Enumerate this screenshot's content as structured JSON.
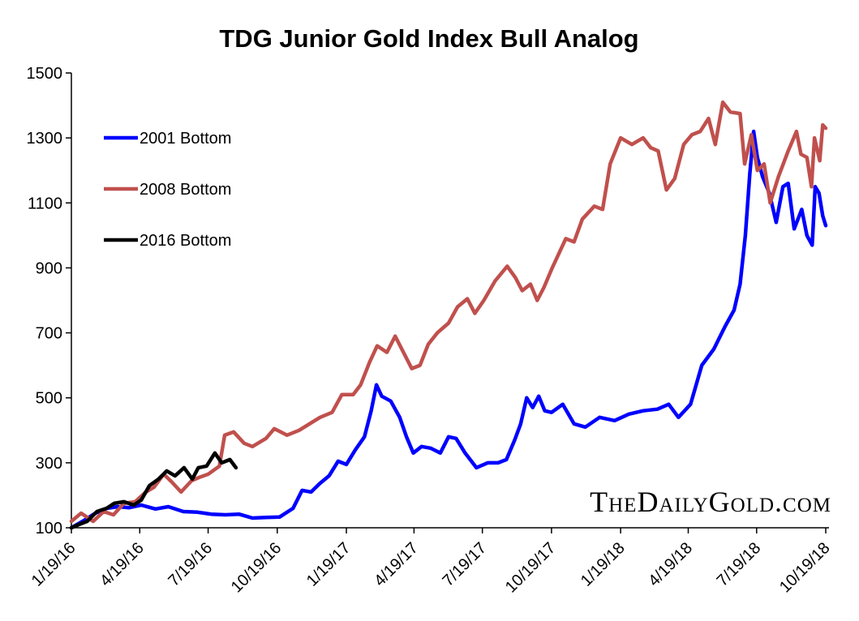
{
  "chart_data": {
    "type": "line",
    "title": "TDG Junior Gold Index Bull Analog",
    "xlabel": "",
    "ylabel": "",
    "x_ticks": [
      "1/19/16",
      "4/19/16",
      "7/19/16",
      "10/19/16",
      "1/19/17",
      "4/19/17",
      "7/19/17",
      "10/19/17",
      "1/19/18",
      "4/19/18",
      "7/19/18",
      "10/19/18"
    ],
    "y_ticks": [
      100,
      300,
      500,
      700,
      900,
      1100,
      1300,
      1500
    ],
    "ylim": [
      100,
      1500
    ],
    "xlim": [
      "2016-01-19",
      "2018-10-19"
    ],
    "grid": false,
    "legend_position": "top-left",
    "watermark": "TheDailyGold.com",
    "series": [
      {
        "name": "2001 Bottom",
        "color": "#0000ff",
        "points": [
          [
            "2016-01-19",
            100
          ],
          [
            "2016-02-03",
            120
          ],
          [
            "2016-02-20",
            145
          ],
          [
            "2016-03-06",
            160
          ],
          [
            "2016-03-21",
            165
          ],
          [
            "2016-04-05",
            162
          ],
          [
            "2016-04-21",
            170
          ],
          [
            "2016-05-10",
            158
          ],
          [
            "2016-05-27",
            165
          ],
          [
            "2016-06-16",
            150
          ],
          [
            "2016-07-05",
            148
          ],
          [
            "2016-07-23",
            142
          ],
          [
            "2016-08-11",
            140
          ],
          [
            "2016-08-29",
            142
          ],
          [
            "2016-09-16",
            130
          ],
          [
            "2016-10-04",
            132
          ],
          [
            "2016-10-22",
            133
          ],
          [
            "2016-11-09",
            160
          ],
          [
            "2016-11-21",
            215
          ],
          [
            "2016-12-03",
            210
          ],
          [
            "2016-12-14",
            235
          ],
          [
            "2016-12-27",
            260
          ],
          [
            "2017-01-08",
            305
          ],
          [
            "2017-01-19",
            295
          ],
          [
            "2017-01-31",
            340
          ],
          [
            "2017-02-12",
            380
          ],
          [
            "2017-02-21",
            460
          ],
          [
            "2017-02-28",
            540
          ],
          [
            "2017-03-07",
            505
          ],
          [
            "2017-03-19",
            490
          ],
          [
            "2017-03-31",
            440
          ],
          [
            "2017-04-09",
            380
          ],
          [
            "2017-04-18",
            330
          ],
          [
            "2017-04-29",
            350
          ],
          [
            "2017-05-11",
            345
          ],
          [
            "2017-05-24",
            330
          ],
          [
            "2017-06-04",
            380
          ],
          [
            "2017-06-14",
            375
          ],
          [
            "2017-06-26",
            330
          ],
          [
            "2017-07-11",
            285
          ],
          [
            "2017-07-26",
            300
          ],
          [
            "2017-08-09",
            300
          ],
          [
            "2017-08-20",
            310
          ],
          [
            "2017-08-31",
            370
          ],
          [
            "2017-09-08",
            420
          ],
          [
            "2017-09-16",
            500
          ],
          [
            "2017-09-24",
            470
          ],
          [
            "2017-10-02",
            505
          ],
          [
            "2017-10-10",
            460
          ],
          [
            "2017-10-19",
            455
          ],
          [
            "2017-11-03",
            480
          ],
          [
            "2017-11-18",
            420
          ],
          [
            "2017-12-03",
            410
          ],
          [
            "2017-12-22",
            440
          ],
          [
            "2018-01-11",
            430
          ],
          [
            "2018-01-30",
            450
          ],
          [
            "2018-02-18",
            460
          ],
          [
            "2018-03-09",
            465
          ],
          [
            "2018-03-24",
            480
          ],
          [
            "2018-04-06",
            440
          ],
          [
            "2018-04-22",
            480
          ],
          [
            "2018-05-07",
            600
          ],
          [
            "2018-05-23",
            650
          ],
          [
            "2018-06-07",
            720
          ],
          [
            "2018-06-19",
            770
          ],
          [
            "2018-06-27",
            850
          ],
          [
            "2018-07-04",
            1000
          ],
          [
            "2018-07-10",
            1190
          ],
          [
            "2018-07-15",
            1320
          ],
          [
            "2018-07-20",
            1240
          ],
          [
            "2018-07-27",
            1180
          ],
          [
            "2018-08-05",
            1130
          ],
          [
            "2018-08-14",
            1040
          ],
          [
            "2018-08-23",
            1150
          ],
          [
            "2018-08-30",
            1160
          ],
          [
            "2018-09-07",
            1020
          ],
          [
            "2018-09-17",
            1080
          ],
          [
            "2018-09-24",
            1000
          ],
          [
            "2018-10-01",
            970
          ],
          [
            "2018-10-05",
            1150
          ],
          [
            "2018-10-10",
            1130
          ],
          [
            "2018-10-15",
            1060
          ],
          [
            "2018-10-19",
            1030
          ]
        ]
      },
      {
        "name": "2008 Bottom",
        "color": "#c0504d",
        "points": [
          [
            "2016-01-19",
            120
          ],
          [
            "2016-02-01",
            145
          ],
          [
            "2016-02-17",
            120
          ],
          [
            "2016-03-02",
            150
          ],
          [
            "2016-03-15",
            140
          ],
          [
            "2016-03-29",
            175
          ],
          [
            "2016-04-13",
            180
          ],
          [
            "2016-04-27",
            210
          ],
          [
            "2016-05-08",
            225
          ],
          [
            "2016-05-21",
            265
          ],
          [
            "2016-06-01",
            240
          ],
          [
            "2016-06-13",
            210
          ],
          [
            "2016-06-27",
            245
          ],
          [
            "2016-07-07",
            255
          ],
          [
            "2016-07-19",
            265
          ],
          [
            "2016-08-03",
            290
          ],
          [
            "2016-08-10",
            385
          ],
          [
            "2016-08-22",
            395
          ],
          [
            "2016-09-05",
            360
          ],
          [
            "2016-09-16",
            350
          ],
          [
            "2016-10-04",
            375
          ],
          [
            "2016-10-15",
            405
          ],
          [
            "2016-11-01",
            385
          ],
          [
            "2016-11-17",
            400
          ],
          [
            "2016-12-01",
            420
          ],
          [
            "2016-12-15",
            440
          ],
          [
            "2016-12-31",
            455
          ],
          [
            "2017-01-13",
            510
          ],
          [
            "2017-01-28",
            510
          ],
          [
            "2017-02-07",
            540
          ],
          [
            "2017-02-19",
            610
          ],
          [
            "2017-03-01",
            660
          ],
          [
            "2017-03-14",
            640
          ],
          [
            "2017-03-25",
            690
          ],
          [
            "2017-04-05",
            640
          ],
          [
            "2017-04-16",
            590
          ],
          [
            "2017-04-27",
            600
          ],
          [
            "2017-05-08",
            665
          ],
          [
            "2017-05-20",
            700
          ],
          [
            "2017-06-04",
            730
          ],
          [
            "2017-06-16",
            780
          ],
          [
            "2017-06-29",
            805
          ],
          [
            "2017-07-09",
            760
          ],
          [
            "2017-07-21",
            800
          ],
          [
            "2017-08-05",
            860
          ],
          [
            "2017-08-21",
            905
          ],
          [
            "2017-09-01",
            870
          ],
          [
            "2017-09-10",
            830
          ],
          [
            "2017-09-21",
            850
          ],
          [
            "2017-09-30",
            800
          ],
          [
            "2017-10-09",
            840
          ],
          [
            "2017-10-20",
            900
          ],
          [
            "2017-11-07",
            990
          ],
          [
            "2017-11-18",
            980
          ],
          [
            "2017-11-29",
            1050
          ],
          [
            "2017-12-15",
            1090
          ],
          [
            "2017-12-26",
            1080
          ],
          [
            "2018-01-05",
            1220
          ],
          [
            "2018-01-19",
            1300
          ],
          [
            "2018-02-03",
            1280
          ],
          [
            "2018-02-18",
            1300
          ],
          [
            "2018-02-28",
            1270
          ],
          [
            "2018-03-10",
            1260
          ],
          [
            "2018-03-21",
            1140
          ],
          [
            "2018-04-01",
            1175
          ],
          [
            "2018-04-13",
            1280
          ],
          [
            "2018-04-24",
            1310
          ],
          [
            "2018-05-05",
            1320
          ],
          [
            "2018-05-16",
            1360
          ],
          [
            "2018-05-25",
            1280
          ],
          [
            "2018-06-04",
            1410
          ],
          [
            "2018-06-14",
            1380
          ],
          [
            "2018-06-27",
            1375
          ],
          [
            "2018-07-03",
            1220
          ],
          [
            "2018-07-12",
            1310
          ],
          [
            "2018-07-20",
            1200
          ],
          [
            "2018-07-29",
            1220
          ],
          [
            "2018-08-06",
            1100
          ],
          [
            "2018-08-17",
            1180
          ],
          [
            "2018-08-30",
            1260
          ],
          [
            "2018-09-10",
            1320
          ],
          [
            "2018-09-16",
            1250
          ],
          [
            "2018-09-24",
            1240
          ],
          [
            "2018-09-30",
            1150
          ],
          [
            "2018-10-04",
            1300
          ],
          [
            "2018-10-11",
            1230
          ],
          [
            "2018-10-15",
            1340
          ],
          [
            "2018-10-19",
            1330
          ]
        ]
      },
      {
        "name": "2016 Bottom",
        "color": "#000000",
        "points": [
          [
            "2016-01-19",
            100
          ],
          [
            "2016-01-29",
            110
          ],
          [
            "2016-02-09",
            120
          ],
          [
            "2016-02-22",
            150
          ],
          [
            "2016-03-06",
            160
          ],
          [
            "2016-03-16",
            175
          ],
          [
            "2016-03-29",
            180
          ],
          [
            "2016-04-11",
            170
          ],
          [
            "2016-04-21",
            185
          ],
          [
            "2016-05-02",
            230
          ],
          [
            "2016-05-14",
            250
          ],
          [
            "2016-05-25",
            275
          ],
          [
            "2016-06-05",
            260
          ],
          [
            "2016-06-17",
            285
          ],
          [
            "2016-06-28",
            250
          ],
          [
            "2016-07-06",
            285
          ],
          [
            "2016-07-17",
            290
          ],
          [
            "2016-07-28",
            330
          ],
          [
            "2016-08-06",
            300
          ],
          [
            "2016-08-17",
            310
          ],
          [
            "2016-08-25",
            285
          ]
        ]
      }
    ]
  }
}
